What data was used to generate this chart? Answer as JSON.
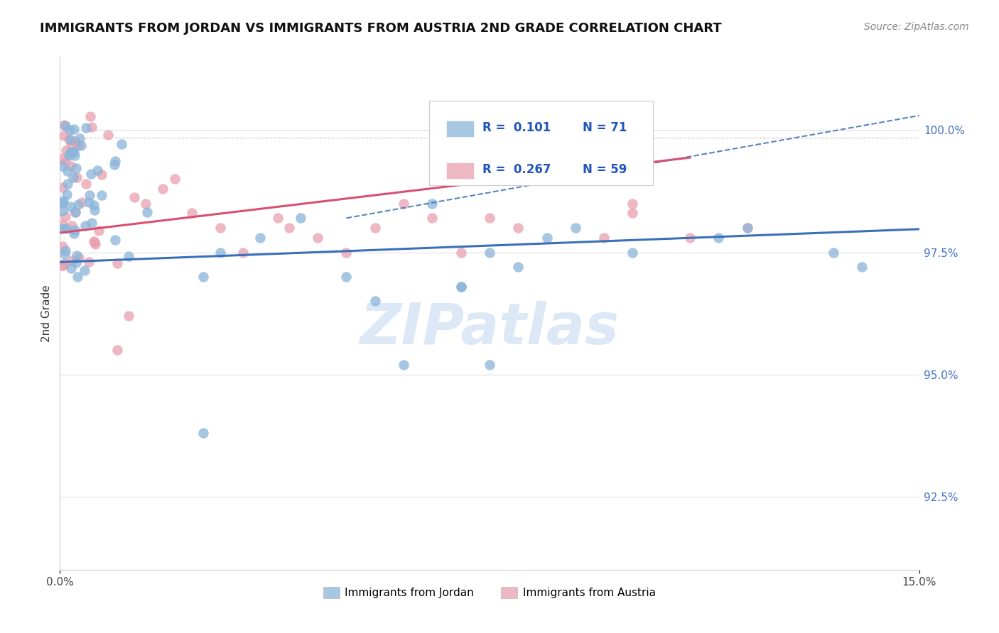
{
  "title": "IMMIGRANTS FROM JORDAN VS IMMIGRANTS FROM AUSTRIA 2ND GRADE CORRELATION CHART",
  "source": "Source: ZipAtlas.com",
  "ylabel": "2nd Grade",
  "ytick_vals": [
    92.5,
    95.0,
    97.5,
    100.0
  ],
  "ytick_labels": [
    "92.5%",
    "95.0%",
    "97.5%",
    "100.0%"
  ],
  "xlim": [
    0.0,
    15.0
  ],
  "ylim": [
    91.0,
    101.5
  ],
  "jordan_color": "#8ab4d9",
  "austria_color": "#e8a0b0",
  "jordan_line_color": "#3a6fba",
  "austria_line_color": "#d94f6e",
  "jordan_fill_color": "#aac8e8",
  "austria_fill_color": "#f0b8c8",
  "legend_R_jordan": "R =  0.101",
  "legend_N_jordan": "N = 71",
  "legend_R_austria": "R =  0.267",
  "legend_N_austria": "N = 59",
  "watermark": "ZIPatlas",
  "watermark_color": "#dce8f5",
  "title_fontsize": 13,
  "source_fontsize": 10,
  "tick_fontsize": 11,
  "legend_fontsize": 12
}
